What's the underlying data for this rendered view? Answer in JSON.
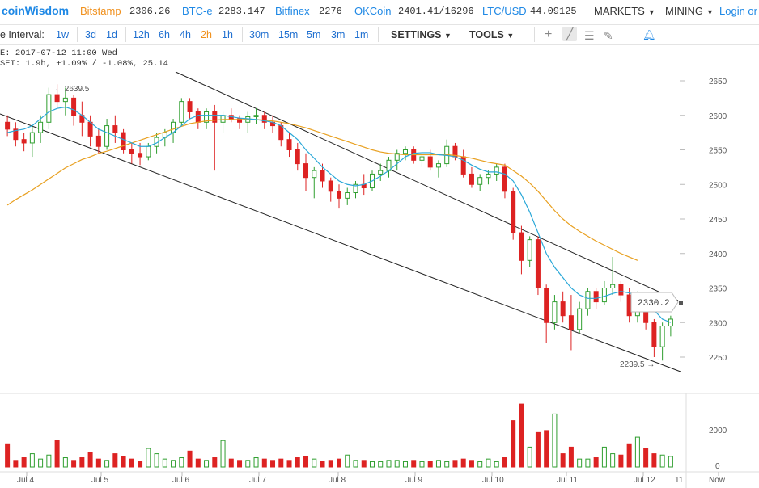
{
  "topbar": {
    "logo": "coinWisdom",
    "tickers": [
      {
        "name": "Bitstamp",
        "value": "2306.26",
        "color": "#f0901c"
      },
      {
        "name": "BTC-e",
        "value": "2283.147",
        "color": "#1e88e5"
      },
      {
        "name": "Bitfinex",
        "value": "2276",
        "color": "#1e88e5"
      },
      {
        "name": "OKCoin",
        "value": "2401.41/16296",
        "color": "#1e88e5"
      },
      {
        "name": "LTC/USD",
        "value": "44.09125",
        "color": "#1e88e5"
      }
    ],
    "markets_label": "MARKETS",
    "mining_label": "MINING",
    "login_label": "Login or R"
  },
  "toolbar": {
    "interval_label": "e Interval:",
    "intervals": [
      "1w",
      "3d",
      "1d",
      "12h",
      "6h",
      "4h",
      "2h",
      "1h",
      "30m",
      "15m",
      "5m",
      "3m",
      "1m"
    ],
    "active_interval": "2h",
    "settings_label": "SETTINGS",
    "tools_label": "TOOLS",
    "tool_icons": [
      "crosshair-icon",
      "line-draw-icon",
      "horizontal-lines-icon",
      "brush-icon",
      "bell-icon"
    ]
  },
  "info": {
    "line1": "E: 2017-07-12 11:00 Wed",
    "line2": "SET: 1.9h, +1.09% / -1.08%, 25.14"
  },
  "chart_data": {
    "type": "candlestick",
    "y_ticks": [
      2650,
      2600,
      2550,
      2500,
      2450,
      2400,
      2350,
      2300,
      2250
    ],
    "ylim": [
      2220,
      2680
    ],
    "x_labels": [
      "Jul 4",
      "Jul 5",
      "Jul 6",
      "Jul 7",
      "Jul 8",
      "Jul 9",
      "Jul 10",
      "Jul 11",
      "Jul 12",
      "Now"
    ],
    "current_price": "2330.2",
    "high_label": "2639.5",
    "low_label": "2239.5",
    "volume_ticks": [
      "2000",
      "0"
    ],
    "edge_label": "11",
    "colors": {
      "up": "#2e9e2e",
      "down": "#dd2222",
      "ma_fast": "#2aa8d8",
      "ma_slow": "#e8a020",
      "trend": "#222222"
    },
    "candles": [
      [
        2590,
        2600,
        2570,
        2580
      ],
      [
        2580,
        2590,
        2555,
        2565
      ],
      [
        2565,
        2575,
        2548,
        2560
      ],
      [
        2560,
        2585,
        2540,
        2575
      ],
      [
        2575,
        2600,
        2560,
        2590
      ],
      [
        2590,
        2640,
        2580,
        2630
      ],
      [
        2630,
        2645,
        2610,
        2620
      ],
      [
        2620,
        2640,
        2600,
        2625
      ],
      [
        2625,
        2630,
        2585,
        2600
      ],
      [
        2600,
        2620,
        2570,
        2590
      ],
      [
        2590,
        2600,
        2555,
        2570
      ],
      [
        2570,
        2580,
        2545,
        2555
      ],
      [
        2555,
        2595,
        2550,
        2585
      ],
      [
        2585,
        2600,
        2560,
        2575
      ],
      [
        2575,
        2580,
        2545,
        2550
      ],
      [
        2550,
        2560,
        2530,
        2545
      ],
      [
        2545,
        2560,
        2528,
        2540
      ],
      [
        2540,
        2560,
        2535,
        2555
      ],
      [
        2555,
        2575,
        2545,
        2568
      ],
      [
        2568,
        2580,
        2555,
        2575
      ],
      [
        2575,
        2595,
        2560,
        2590
      ],
      [
        2590,
        2625,
        2585,
        2620
      ],
      [
        2620,
        2625,
        2595,
        2605
      ],
      [
        2605,
        2610,
        2580,
        2590
      ],
      [
        2590,
        2610,
        2580,
        2605
      ],
      [
        2605,
        2615,
        2520,
        2590
      ],
      [
        2590,
        2605,
        2575,
        2600
      ],
      [
        2600,
        2610,
        2590,
        2595
      ],
      [
        2595,
        2600,
        2580,
        2590
      ],
      [
        2590,
        2605,
        2575,
        2598
      ],
      [
        2598,
        2610,
        2588,
        2600
      ],
      [
        2600,
        2605,
        2580,
        2590
      ],
      [
        2590,
        2600,
        2575,
        2585
      ],
      [
        2585,
        2590,
        2555,
        2565
      ],
      [
        2565,
        2575,
        2540,
        2550
      ],
      [
        2550,
        2560,
        2520,
        2530
      ],
      [
        2530,
        2545,
        2490,
        2510
      ],
      [
        2510,
        2525,
        2480,
        2520
      ],
      [
        2520,
        2530,
        2495,
        2505
      ],
      [
        2505,
        2510,
        2475,
        2490
      ],
      [
        2490,
        2500,
        2465,
        2480
      ],
      [
        2480,
        2495,
        2470,
        2488
      ],
      [
        2488,
        2505,
        2480,
        2500
      ],
      [
        2500,
        2515,
        2485,
        2495
      ],
      [
        2495,
        2520,
        2490,
        2515
      ],
      [
        2515,
        2530,
        2505,
        2520
      ],
      [
        2520,
        2540,
        2510,
        2535
      ],
      [
        2535,
        2550,
        2520,
        2545
      ],
      [
        2545,
        2555,
        2535,
        2550
      ],
      [
        2550,
        2555,
        2530,
        2535
      ],
      [
        2535,
        2545,
        2525,
        2540
      ],
      [
        2540,
        2550,
        2520,
        2525
      ],
      [
        2525,
        2535,
        2510,
        2530
      ],
      [
        2530,
        2565,
        2525,
        2555
      ],
      [
        2555,
        2560,
        2535,
        2540
      ],
      [
        2540,
        2550,
        2510,
        2515
      ],
      [
        2515,
        2525,
        2495,
        2500
      ],
      [
        2500,
        2515,
        2490,
        2510
      ],
      [
        2510,
        2520,
        2500,
        2515
      ],
      [
        2515,
        2530,
        2505,
        2525
      ],
      [
        2525,
        2530,
        2480,
        2490
      ],
      [
        2490,
        2495,
        2420,
        2430
      ],
      [
        2430,
        2440,
        2370,
        2390
      ],
      [
        2390,
        2425,
        2380,
        2420
      ],
      [
        2420,
        2425,
        2340,
        2350
      ],
      [
        2350,
        2355,
        2270,
        2300
      ],
      [
        2300,
        2340,
        2290,
        2330
      ],
      [
        2330,
        2345,
        2300,
        2310
      ],
      [
        2310,
        2340,
        2260,
        2290
      ],
      [
        2290,
        2330,
        2285,
        2320
      ],
      [
        2320,
        2350,
        2310,
        2345
      ],
      [
        2345,
        2350,
        2320,
        2330
      ],
      [
        2330,
        2360,
        2325,
        2350
      ],
      [
        2350,
        2395,
        2340,
        2355
      ],
      [
        2355,
        2360,
        2330,
        2340
      ],
      [
        2340,
        2350,
        2300,
        2310
      ],
      [
        2310,
        2345,
        2300,
        2335
      ],
      [
        2335,
        2340,
        2290,
        2300
      ],
      [
        2300,
        2305,
        2250,
        2265
      ],
      [
        2265,
        2300,
        2245,
        2295
      ],
      [
        2295,
        2310,
        2280,
        2305
      ]
    ],
    "ma_fast": [
      2575,
      2578,
      2580,
      2585,
      2595,
      2605,
      2610,
      2612,
      2608,
      2600,
      2590,
      2580,
      2575,
      2570,
      2565,
      2560,
      2555,
      2555,
      2560,
      2568,
      2575,
      2585,
      2595,
      2600,
      2600,
      2600,
      2600,
      2598,
      2596,
      2595,
      2594,
      2592,
      2590,
      2585,
      2575,
      2565,
      2550,
      2538,
      2525,
      2515,
      2505,
      2500,
      2498,
      2500,
      2505,
      2512,
      2520,
      2530,
      2540,
      2545,
      2546,
      2546,
      2543,
      2542,
      2540,
      2535,
      2528,
      2522,
      2518,
      2518,
      2515,
      2505,
      2485,
      2460,
      2430,
      2400,
      2380,
      2365,
      2350,
      2340,
      2335,
      2335,
      2338,
      2342,
      2345,
      2343,
      2338,
      2330,
      2318,
      2305,
      2300
    ],
    "ma_slow": [
      2470,
      2478,
      2485,
      2492,
      2500,
      2508,
      2516,
      2524,
      2530,
      2536,
      2540,
      2545,
      2548,
      2552,
      2556,
      2560,
      2564,
      2568,
      2572,
      2576,
      2580,
      2584,
      2588,
      2590,
      2592,
      2593,
      2594,
      2594,
      2594,
      2594,
      2594,
      2593,
      2592,
      2590,
      2588,
      2585,
      2582,
      2578,
      2574,
      2570,
      2566,
      2562,
      2558,
      2554,
      2550,
      2547,
      2545,
      2544,
      2543,
      2543,
      2543,
      2543,
      2543,
      2543,
      2542,
      2540,
      2538,
      2535,
      2532,
      2530,
      2528,
      2520,
      2512,
      2502,
      2490,
      2476,
      2462,
      2450,
      2440,
      2432,
      2425,
      2418,
      2412,
      2406,
      2400,
      2395,
      2390
    ],
    "volume": [
      35,
      10,
      14,
      20,
      12,
      18,
      40,
      14,
      10,
      14,
      22,
      12,
      10,
      20,
      16,
      12,
      8,
      28,
      20,
      12,
      10,
      14,
      24,
      12,
      10,
      14,
      40,
      12,
      10,
      10,
      14,
      12,
      10,
      12,
      10,
      14,
      16,
      12,
      8,
      10,
      12,
      18,
      10,
      10,
      8,
      8,
      10,
      10,
      8,
      10,
      8,
      8,
      10,
      8,
      10,
      12,
      10,
      8,
      12,
      8,
      14,
      70,
      95,
      30,
      52,
      55,
      80,
      20,
      30,
      12,
      12,
      14,
      30,
      20,
      18,
      35,
      45,
      28,
      20,
      18,
      16
    ]
  }
}
